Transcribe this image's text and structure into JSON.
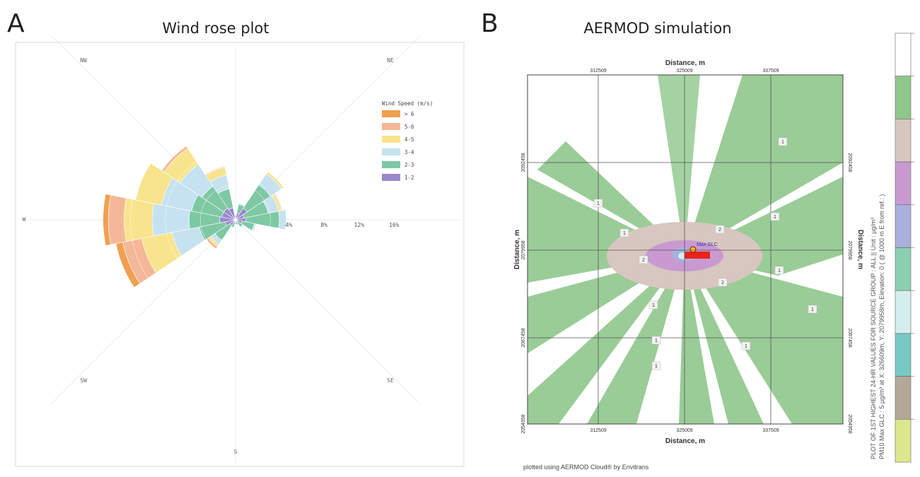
{
  "panels": {
    "a": {
      "letter": "A",
      "title": "Wind rose plot"
    },
    "b": {
      "letter": "B",
      "title": "AERMOD simulation"
    }
  },
  "chart_data": [
    {
      "type": "wind_rose",
      "directions": [
        "N",
        "NNE",
        "NE",
        "ENE",
        "E",
        "ESE",
        "SE",
        "SSE",
        "S",
        "SSW",
        "SW",
        "WSW",
        "W",
        "WNW",
        "NW",
        "NNW"
      ],
      "compass_labels": [
        "NW",
        "NE",
        "W",
        "SW",
        "SE",
        "S"
      ],
      "radial_ticks": [
        4,
        8,
        12,
        16
      ],
      "radial_tick_labels": [
        "4%",
        "8%",
        "12%",
        "16%"
      ],
      "radial_unit": "%",
      "legend_title": "Wind Speed (m/s)",
      "legend_position": "right",
      "bins": [
        {
          "label": "> 6",
          "color": "#f0a050"
        },
        {
          "label": "5-6",
          "color": "#f4b898"
        },
        {
          "label": "4-5",
          "color": "#f8e48c"
        },
        {
          "label": "3-4",
          "color": "#c6e2f0"
        },
        {
          "label": "2-3",
          "color": "#7ec8a4"
        },
        {
          "label": "1-2",
          "color": "#9a88cc"
        }
      ],
      "frequencies": {
        "N": [
          0,
          0,
          0,
          0,
          0.2,
          0.3
        ],
        "NNE": [
          0,
          0,
          0,
          0.1,
          1.0,
          0.8
        ],
        "NE": [
          0,
          0,
          0.3,
          1.5,
          3.2,
          1.6
        ],
        "ENE": [
          0,
          0.1,
          0.3,
          1.2,
          2.8,
          1.0
        ],
        "E": [
          0,
          0,
          0,
          0.8,
          3.8,
          1.2
        ],
        "ESE": [
          0,
          0,
          0,
          0.2,
          1.4,
          0.8
        ],
        "SE": [
          0,
          0,
          0,
          0.1,
          0.6,
          0.4
        ],
        "SSE": [
          0,
          0,
          0,
          0,
          0.4,
          0.2
        ],
        "S": [
          0,
          0,
          0,
          0,
          0.3,
          0.2
        ],
        "SSW": [
          0,
          0,
          0,
          0,
          0.6,
          0.3
        ],
        "SW": [
          0,
          0.3,
          0.3,
          0.6,
          2.0,
          0.8
        ],
        "WSW": [
          0.8,
          2.2,
          3.5,
          3.2,
          3.0,
          1.2
        ],
        "W": [
          0.6,
          1.8,
          3.2,
          4.2,
          3.5,
          1.8
        ],
        "WNW": [
          0,
          0,
          3.0,
          3.5,
          3.5,
          1.6
        ],
        "NW": [
          0,
          0.3,
          2.2,
          3.0,
          3.0,
          1.6
        ],
        "NNW": [
          0,
          0.1,
          0.9,
          1.6,
          2.2,
          1.4
        ]
      }
    },
    {
      "type": "contour_map",
      "x_label": "Distance, m",
      "y_label": "Distance, m",
      "x_ticks": [
        "312509",
        "325009",
        "337509"
      ],
      "y_ticks": [
        "2092458",
        "2079958",
        "2067458",
        "2054958"
      ],
      "contour_labels": [
        "1",
        "1",
        "1",
        "1",
        "2",
        "2",
        "2",
        "1",
        "1",
        "1",
        "1",
        "1",
        "1"
      ],
      "max_glc_label": "Max GLC",
      "side_caption_1": "PLOT OF 1ST HIGHEST 24-HR VALUES FOR SOURCE GROUP : ALL || Unit : µg/m³",
      "side_caption_2": "PM10 Max GLC : 5 µg/m³ at X: 326609m, Y: 2079958m, Elevation: 0 ( @ 1000 m E from ref.: )",
      "footer": "plotted using AERMOD Cloud® by Envitrans",
      "colorbar_colors": [
        "#ffffff",
        "#8fc78c",
        "#d8c6c0",
        "#c89ad0",
        "#a8b0dc",
        "#8ccfb0",
        "#d4eeee",
        "#78c8c4",
        "#b4a898",
        "#dce88c"
      ]
    }
  ]
}
